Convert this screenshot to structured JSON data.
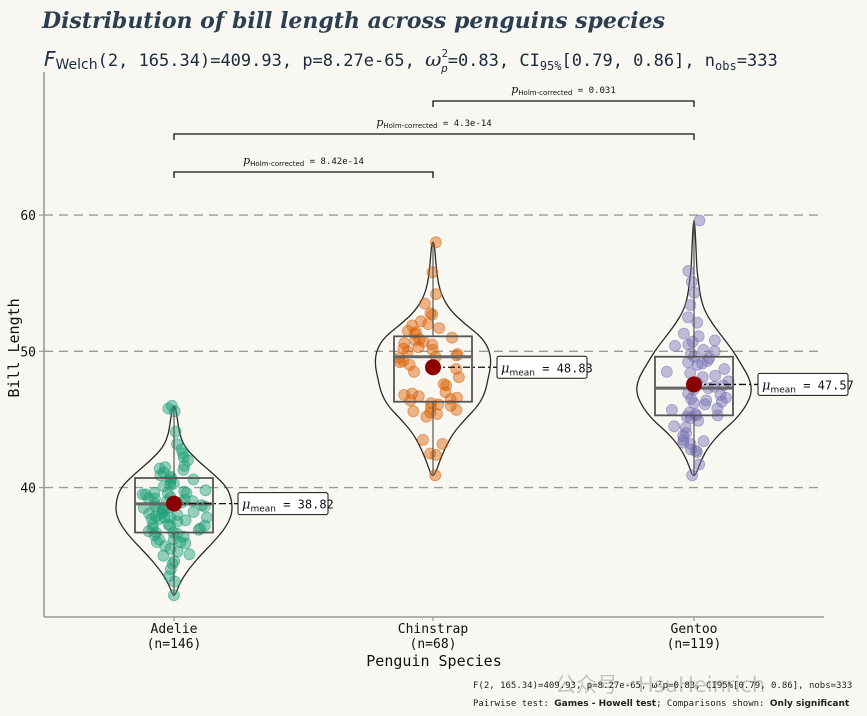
{
  "chart_data": {
    "type": "violin",
    "title": "Distribution of bill length across penguins species",
    "subtitle": {
      "lead_symbol": "F",
      "lead_sub": "Welch",
      "lead_rest": "(2,  165.34)=409.93,  p=8.27e-65,",
      "omega_symbol": "ω",
      "omega_sup": "2",
      "omega_sub": "p",
      "omega_rest": "=0.83,  CI",
      "ci_sub": "95%",
      "ci_rest": "[0.79,  0.86],  n",
      "n_sub": "obs",
      "n_rest": "=333"
    },
    "xlabel": "Penguin Species",
    "ylabel": "Bill Length",
    "ylim": [
      30.5,
      70.5
    ],
    "yticks": [
      "40",
      "50",
      "60"
    ],
    "grid_lines_y": [
      40,
      50,
      60
    ],
    "categories": [
      "Adelie",
      "Chinstrap",
      "Gentoo"
    ],
    "category_counts": [
      "(n=146)",
      "(n=68)",
      "(n=119)"
    ],
    "colors": {
      "Adelie": "#1b9e77",
      "Chinstrap": "#d95f02",
      "Gentoo": "#7570b3",
      "mean_point": "#8b0000",
      "frame": "#999999",
      "background": "#f9f7f2",
      "title": "#2c3e50"
    },
    "series": [
      {
        "name": "Adelie",
        "mean": 38.82,
        "mean_label": "38.82",
        "box": {
          "q1": 36.7,
          "median": 38.8,
          "q3": 40.7,
          "whisker_low": 32.1,
          "whisker_high": 46.0
        },
        "violin": {
          "min": 32.1,
          "max": 46.0,
          "profile": [
            [
              32.1,
              0.02
            ],
            [
              33.0,
              0.1
            ],
            [
              34.0,
              0.25
            ],
            [
              35.0,
              0.45
            ],
            [
              36.0,
              0.68
            ],
            [
              37.0,
              0.88
            ],
            [
              38.0,
              1.0
            ],
            [
              39.0,
              1.0
            ],
            [
              40.0,
              0.92
            ],
            [
              41.0,
              0.68
            ],
            [
              42.0,
              0.4
            ],
            [
              43.0,
              0.18
            ],
            [
              44.0,
              0.09
            ],
            [
              45.0,
              0.06
            ],
            [
              46.0,
              0.02
            ]
          ]
        },
        "points_y": [
          32.1,
          33.1,
          33.5,
          34.0,
          34.4,
          34.6,
          35.0,
          35.1,
          35.3,
          35.5,
          35.7,
          35.9,
          36.0,
          36.0,
          36.2,
          36.2,
          36.4,
          36.5,
          36.6,
          36.7,
          36.7,
          36.8,
          36.9,
          37.0,
          37.0,
          37.2,
          37.2,
          37.3,
          37.3,
          37.5,
          37.6,
          37.7,
          37.7,
          37.8,
          37.8,
          37.9,
          38.0,
          38.1,
          38.1,
          38.2,
          38.3,
          38.5,
          38.5,
          38.6,
          38.6,
          38.7,
          38.8,
          38.8,
          38.9,
          39.0,
          39.0,
          39.1,
          39.2,
          39.2,
          39.3,
          39.5,
          39.5,
          39.6,
          39.6,
          39.7,
          39.8,
          40.1,
          40.2,
          40.3,
          40.5,
          40.6,
          40.7,
          40.8,
          40.9,
          41.1,
          41.3,
          41.4,
          41.5,
          41.6,
          42.0,
          42.2,
          42.5,
          42.8,
          43.2,
          44.1,
          45.6,
          45.8,
          46.0,
          37.8,
          39.6,
          38.4
        ]
      },
      {
        "name": "Chinstrap",
        "mean": 48.83,
        "mean_label": "48.83",
        "box": {
          "q1": 46.3,
          "median": 49.6,
          "q3": 51.1,
          "whisker_low": 40.9,
          "whisker_high": 58.0
        },
        "violin": {
          "min": 40.9,
          "max": 58.0,
          "profile": [
            [
              40.9,
              0.03
            ],
            [
              42.0,
              0.12
            ],
            [
              43.0,
              0.22
            ],
            [
              44.0,
              0.35
            ],
            [
              45.0,
              0.55
            ],
            [
              46.0,
              0.78
            ],
            [
              47.0,
              0.9
            ],
            [
              48.0,
              0.95
            ],
            [
              49.0,
              1.0
            ],
            [
              50.0,
              0.98
            ],
            [
              51.0,
              0.85
            ],
            [
              52.0,
              0.55
            ],
            [
              53.0,
              0.3
            ],
            [
              54.0,
              0.16
            ],
            [
              55.0,
              0.09
            ],
            [
              56.0,
              0.06
            ],
            [
              57.0,
              0.04
            ],
            [
              58.0,
              0.02
            ]
          ]
        },
        "points_y": [
          40.9,
          42.4,
          42.5,
          43.2,
          43.5,
          45.2,
          45.4,
          45.5,
          45.6,
          45.7,
          45.9,
          46.0,
          46.1,
          46.2,
          46.4,
          46.5,
          46.6,
          46.7,
          46.8,
          46.9,
          47.0,
          47.5,
          47.6,
          48.1,
          48.5,
          48.7,
          49.0,
          49.2,
          49.3,
          49.5,
          49.6,
          49.7,
          49.8,
          50.0,
          50.1,
          50.2,
          50.3,
          50.5,
          50.6,
          50.7,
          50.8,
          50.9,
          51.0,
          51.3,
          51.4,
          51.5,
          51.7,
          51.9,
          52.0,
          52.2,
          52.7,
          52.8,
          53.5,
          54.2,
          55.8,
          58.0
        ]
      },
      {
        "name": "Gentoo",
        "mean": 47.57,
        "mean_label": "47.57",
        "box": {
          "q1": 45.3,
          "median": 47.3,
          "q3": 49.6,
          "whisker_low": 40.9,
          "whisker_high": 59.6
        },
        "violin": {
          "min": 40.9,
          "max": 59.6,
          "profile": [
            [
              40.9,
              0.03
            ],
            [
              42.0,
              0.12
            ],
            [
              43.0,
              0.25
            ],
            [
              44.0,
              0.45
            ],
            [
              45.0,
              0.72
            ],
            [
              46.0,
              0.9
            ],
            [
              47.0,
              1.0
            ],
            [
              48.0,
              0.96
            ],
            [
              49.0,
              0.82
            ],
            [
              50.0,
              0.68
            ],
            [
              51.0,
              0.5
            ],
            [
              52.0,
              0.32
            ],
            [
              53.0,
              0.18
            ],
            [
              54.0,
              0.11
            ],
            [
              55.0,
              0.08
            ],
            [
              56.0,
              0.05
            ],
            [
              57.0,
              0.04
            ],
            [
              58.0,
              0.03
            ],
            [
              59.6,
              0.01
            ]
          ]
        },
        "points_y": [
          40.9,
          41.7,
          42.6,
          42.7,
          42.8,
          43.2,
          43.3,
          43.4,
          43.5,
          43.8,
          44.0,
          44.4,
          44.5,
          44.9,
          45.1,
          45.2,
          45.3,
          45.3,
          45.4,
          45.5,
          45.7,
          45.8,
          46.1,
          46.2,
          46.3,
          46.4,
          46.5,
          46.6,
          46.8,
          46.9,
          47.2,
          47.3,
          47.4,
          47.5,
          47.7,
          47.8,
          48.1,
          48.2,
          48.4,
          48.5,
          48.7,
          49.0,
          49.1,
          49.2,
          49.3,
          49.5,
          49.6,
          49.8,
          50.0,
          50.1,
          50.4,
          50.5,
          50.7,
          50.8,
          51.1,
          51.3,
          52.1,
          52.5,
          53.4,
          54.3,
          55.1,
          55.9,
          59.6
        ]
      }
    ],
    "comparisons": [
      {
        "from": "Adelie",
        "to": "Chinstrap",
        "label_sub": "Holm-corrected",
        "label_value": " = 8.42e-14"
      },
      {
        "from": "Adelie",
        "to": "Gentoo",
        "label_sub": "Holm-corrected",
        "label_value": " = 4.3e-14"
      },
      {
        "from": "Chinstrap",
        "to": "Gentoo",
        "label_sub": "Holm-corrected",
        "label_value": " = 0.031"
      }
    ],
    "mean_label_prefix": "μ",
    "mean_label_sub": "mean",
    "caption": {
      "line1": "F(2,  165.34)=409.93,  p=8.27e-65,  ω²p=0.83,  CI95%[0.79,  0.86],  nobs=333",
      "line2_prefix": "Pairwise test: ",
      "line2_test": "Games - Howell test",
      "line2_mid": "; Comparisons shown: ",
      "line2_shown": "Only significant"
    },
    "watermark": "公众号 · HsuHeinrich"
  }
}
